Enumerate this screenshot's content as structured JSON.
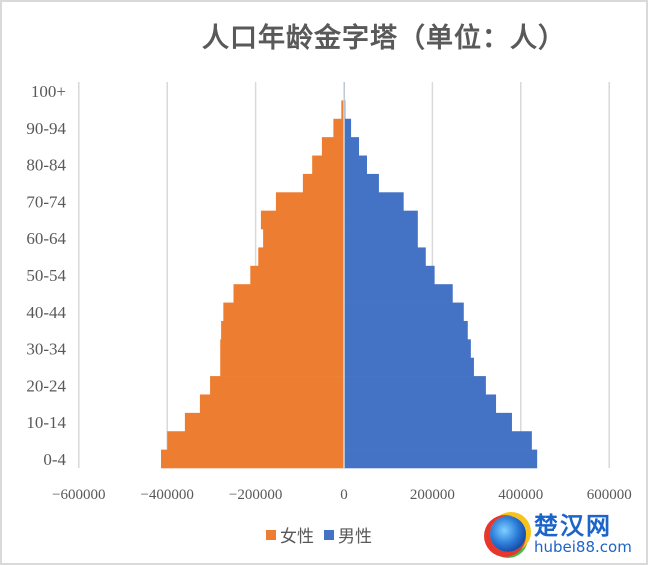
{
  "chart_data": {
    "type": "bar",
    "orientation": "horizontal",
    "subtype": "population-pyramid",
    "title": "人口年龄金字塔（单位：人）",
    "xlabel": "",
    "ylabel": "",
    "xlim": [
      -600000,
      600000
    ],
    "xticks": [
      -600000,
      -400000,
      -200000,
      0,
      200000,
      400000,
      600000
    ],
    "xtick_labels": [
      "-600000",
      "-400000",
      "-200000",
      "0",
      "200000",
      "400000",
      "600000"
    ],
    "grid": "vertical",
    "legend_position": "bottom",
    "categories": [
      "0-4",
      "5-9",
      "10-14",
      "15-19",
      "20-24",
      "25-29",
      "30-34",
      "35-39",
      "40-44",
      "45-49",
      "50-54",
      "55-59",
      "60-64",
      "65-69",
      "70-74",
      "75-79",
      "80-84",
      "85-89",
      "90-94",
      "95-99",
      "100+"
    ],
    "ytick_labels_shown": [
      "0-4",
      "10-14",
      "20-24",
      "30-34",
      "40-44",
      "50-54",
      "60-64",
      "70-74",
      "80-84",
      "90-94",
      "100+"
    ],
    "series": [
      {
        "name": "女性",
        "color": "#ED7D31",
        "values": [
          -414000,
          -400000,
          -360000,
          -326000,
          -303000,
          -280000,
          -280000,
          -278000,
          -273000,
          -250000,
          -212000,
          -194000,
          -183000,
          -188000,
          -154000,
          -93000,
          -72000,
          -50000,
          -24000,
          -6000,
          -1000
        ]
      },
      {
        "name": "男性",
        "color": "#4472C4",
        "values": [
          437000,
          425000,
          380000,
          344000,
          321000,
          294000,
          287000,
          280000,
          271000,
          246000,
          205000,
          185000,
          167000,
          167000,
          135000,
          79000,
          52000,
          34000,
          16000,
          3000,
          2000
        ]
      }
    ]
  },
  "legend": {
    "items": [
      {
        "label": "女性",
        "color": "#ED7D31"
      },
      {
        "label": "男性",
        "color": "#4472C4"
      }
    ]
  },
  "watermark": {
    "name": "楚汉网",
    "url": "hubei88.com"
  },
  "colors": {
    "text": "#595959",
    "grid": "#d9d9d9",
    "female": "#ED7D31",
    "male": "#4472C4"
  }
}
